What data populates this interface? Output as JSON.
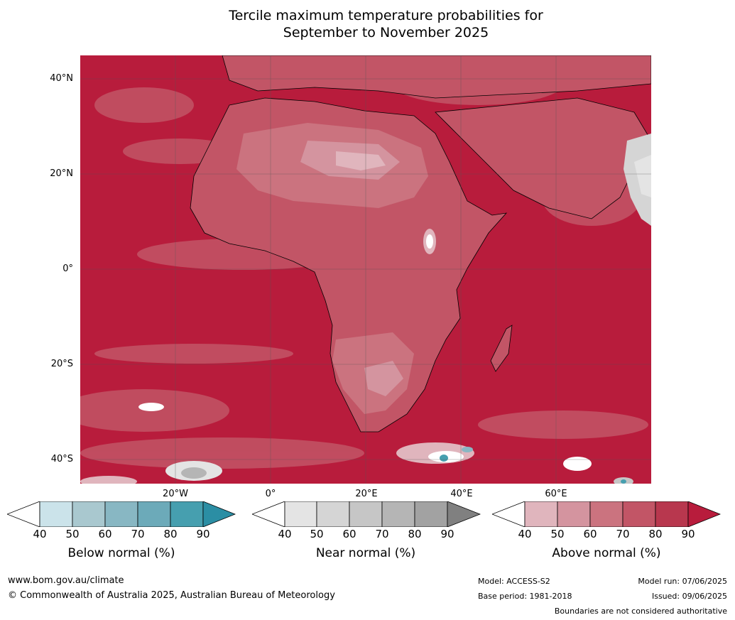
{
  "title": {
    "line1": "Tercile maximum temperature probabilities for",
    "line2": "September to November 2025"
  },
  "map": {
    "latitude_labels": [
      "40°N",
      "20°N",
      "0°",
      "20°S",
      "40°S"
    ],
    "longitude_labels": [
      "20°W",
      "0°",
      "20°E",
      "40°E",
      "60°E"
    ],
    "dominant_color": "#b81c3c"
  },
  "legends": [
    {
      "title": "Below normal (%)",
      "ticks": [
        "40",
        "50",
        "60",
        "70",
        "80",
        "90"
      ],
      "colors": [
        "#ffffff",
        "#cbe3ea",
        "#a9c8cf",
        "#88b7c3",
        "#6caab9",
        "#469faf",
        "#2b8ea4"
      ]
    },
    {
      "title": "Near normal (%)",
      "ticks": [
        "40",
        "50",
        "60",
        "70",
        "80",
        "90"
      ],
      "colors": [
        "#ffffff",
        "#e4e4e4",
        "#d5d5d5",
        "#c6c6c6",
        "#b5b5b5",
        "#a2a2a2",
        "#808080"
      ]
    },
    {
      "title": "Above normal (%)",
      "ticks": [
        "40",
        "50",
        "60",
        "70",
        "80",
        "90"
      ],
      "colors": [
        "#ffffff",
        "#e0b5bd",
        "#d4949f",
        "#cb737f",
        "#c25566",
        "#b8374e",
        "#b81c3c"
      ]
    }
  ],
  "footer": {
    "website": "www.bom.gov.au/climate",
    "copyright": "© Commonwealth of Australia 2025, Australian Bureau of Meteorology",
    "model": "Model: ACCESS-S2",
    "base_period": "Base period: 1981-2018",
    "model_run": "Model run: 07/06/2025",
    "issued": "Issued: 09/06/2025",
    "disclaimer": "Boundaries are not considered authoritative"
  }
}
